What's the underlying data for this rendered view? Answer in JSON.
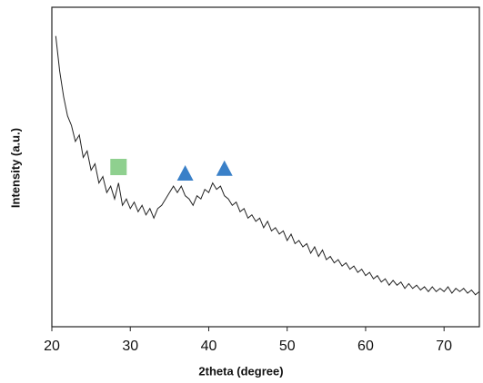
{
  "chart_data": {
    "type": "line",
    "x_label": "2theta (degree)",
    "y_label": "Intensity (a.u.)",
    "xlim": [
      20,
      74.5
    ],
    "ylim": [
      0,
      100
    ],
    "xticks": [
      20,
      30,
      40,
      50,
      60,
      70
    ],
    "x": [
      20.5,
      21,
      21.5,
      22,
      22.5,
      23,
      23.5,
      24,
      24.5,
      25,
      25.5,
      26,
      26.5,
      27,
      27.5,
      28,
      28.5,
      29,
      29.5,
      30,
      30.5,
      31,
      31.5,
      32,
      32.5,
      33,
      33.5,
      34,
      34.5,
      35,
      35.5,
      36,
      36.5,
      37,
      37.5,
      38,
      38.5,
      39,
      39.5,
      40,
      40.5,
      41,
      41.5,
      42,
      42.5,
      43,
      43.5,
      44,
      44.5,
      45,
      45.5,
      46,
      46.5,
      47,
      47.5,
      48,
      48.5,
      49,
      49.5,
      50,
      50.5,
      51,
      51.5,
      52,
      52.5,
      53,
      53.5,
      54,
      54.5,
      55,
      55.5,
      56,
      56.5,
      57,
      57.5,
      58,
      58.5,
      59,
      59.5,
      60,
      60.5,
      61,
      61.5,
      62,
      62.5,
      63,
      63.5,
      64,
      64.5,
      65,
      65.5,
      66,
      66.5,
      67,
      67.5,
      68,
      68.5,
      69,
      69.5,
      70,
      70.5,
      71,
      71.5,
      72,
      72.5,
      73,
      73.5,
      74,
      74.5
    ],
    "series": [
      {
        "color": "#222222",
        "values": [
          91,
          80,
          72,
          66,
          63,
          58,
          60,
          53,
          55,
          49,
          51,
          45,
          47,
          42,
          44,
          40,
          45,
          38,
          40,
          37,
          39,
          36,
          38,
          35,
          37,
          34,
          37,
          38,
          40,
          42,
          44,
          42,
          44,
          41,
          40,
          38,
          41,
          40,
          43,
          42,
          45,
          43,
          44,
          41,
          40,
          38,
          39,
          36,
          37,
          34,
          35,
          33,
          34,
          31,
          33,
          30,
          31,
          29,
          30,
          27,
          29,
          26,
          27,
          25,
          26,
          23,
          25,
          22,
          24,
          21,
          22,
          20,
          21,
          19,
          20,
          18,
          19,
          17,
          18,
          16,
          17,
          15,
          16,
          14,
          15,
          13,
          14.5,
          13,
          14,
          12,
          13.5,
          12,
          13,
          11.5,
          12.5,
          11,
          12.5,
          11,
          12,
          11,
          12.5,
          10.5,
          12,
          11,
          12,
          10.5,
          11.5,
          10,
          11
        ]
      }
    ],
    "markers": [
      {
        "shape": "square",
        "color": "#8fd08f",
        "x": 28.5,
        "y": 50
      },
      {
        "shape": "triangle",
        "color": "#3a80c8",
        "x": 37,
        "y": 48
      },
      {
        "shape": "triangle",
        "color": "#3a80c8",
        "x": 42,
        "y": 49.5
      }
    ]
  }
}
